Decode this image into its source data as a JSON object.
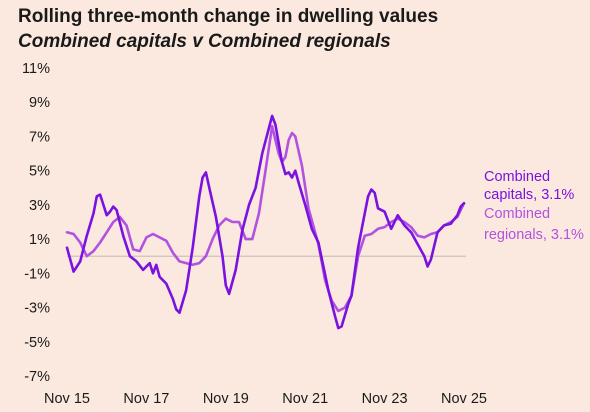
{
  "title": "Rolling three-month change in dwelling values",
  "subtitle": "Combined capitals v Combined regionals",
  "chart_data": {
    "type": "line",
    "title": "Rolling three-month change in dwelling values",
    "subtitle": "Combined capitals v Combined regionals",
    "xlabel": "",
    "ylabel": "",
    "ylim": [
      -7,
      11
    ],
    "yticks": [
      11,
      9,
      7,
      5,
      3,
      1,
      -1,
      -3,
      -5,
      -7
    ],
    "ytick_labels": [
      "11%",
      "9%",
      "7%",
      "5%",
      "3%",
      "1%",
      "-1%",
      "-3%",
      "-5%",
      "-7%"
    ],
    "xlim": [
      "2015-11",
      "2025-11"
    ],
    "xticks": [
      "2015-11",
      "2017-11",
      "2019-11",
      "2021-11",
      "2023-11",
      "2025-11"
    ],
    "xtick_labels": [
      "Nov 15",
      "Nov 17",
      "Nov 19",
      "Nov 21",
      "Nov 23",
      "Nov 25"
    ],
    "zero_line": true,
    "grid": false,
    "legend": "labels at right end of lines",
    "series": [
      {
        "name": "Combined capitals, 3.1%",
        "label_lines": [
          "Combined",
          "capitals, 3.1%"
        ],
        "color": "#7a12e0",
        "points": [
          [
            "2015-11",
            0.5
          ],
          [
            "2016-01",
            -0.9
          ],
          [
            "2016-03",
            -0.3
          ],
          [
            "2016-05",
            1.2
          ],
          [
            "2016-07",
            2.5
          ],
          [
            "2016-08",
            3.5
          ],
          [
            "2016-09",
            3.6
          ],
          [
            "2016-10",
            3.0
          ],
          [
            "2016-11",
            2.4
          ],
          [
            "2016-12",
            2.6
          ],
          [
            "2017-01",
            2.9
          ],
          [
            "2017-02",
            2.7
          ],
          [
            "2017-04",
            1.2
          ],
          [
            "2017-06",
            0.0
          ],
          [
            "2017-08",
            -0.3
          ],
          [
            "2017-10",
            -0.8
          ],
          [
            "2017-11",
            -0.6
          ],
          [
            "2017-12",
            -0.4
          ],
          [
            "2018-01",
            -1.0
          ],
          [
            "2018-02",
            -0.5
          ],
          [
            "2018-03",
            -1.2
          ],
          [
            "2018-05",
            -1.6
          ],
          [
            "2018-07",
            -2.5
          ],
          [
            "2018-08",
            -3.1
          ],
          [
            "2018-09",
            -3.3
          ],
          [
            "2018-11",
            -2.0
          ],
          [
            "2019-01",
            0.5
          ],
          [
            "2019-03",
            3.5
          ],
          [
            "2019-04",
            4.6
          ],
          [
            "2019-05",
            4.9
          ],
          [
            "2019-06",
            4.0
          ],
          [
            "2019-08",
            2.3
          ],
          [
            "2019-10",
            0.0
          ],
          [
            "2019-11",
            -1.7
          ],
          [
            "2019-12",
            -2.2
          ],
          [
            "2020-02",
            -0.8
          ],
          [
            "2020-04",
            1.5
          ],
          [
            "2020-06",
            3.0
          ],
          [
            "2020-08",
            4.0
          ],
          [
            "2020-10",
            6.0
          ],
          [
            "2021-01",
            8.2
          ],
          [
            "2021-02",
            7.7
          ],
          [
            "2021-04",
            5.5
          ],
          [
            "2021-05",
            4.8
          ],
          [
            "2021-06",
            4.9
          ],
          [
            "2021-07",
            4.6
          ],
          [
            "2021-08",
            5.0
          ],
          [
            "2021-09",
            4.3
          ],
          [
            "2021-11",
            3.0
          ],
          [
            "2022-01",
            1.6
          ],
          [
            "2022-03",
            0.8
          ],
          [
            "2022-06",
            -2.0
          ],
          [
            "2022-08",
            -3.5
          ],
          [
            "2022-09",
            -4.2
          ],
          [
            "2022-10",
            -4.1
          ],
          [
            "2022-12",
            -2.8
          ],
          [
            "2023-01",
            -2.3
          ],
          [
            "2023-03",
            0.5
          ],
          [
            "2023-04",
            1.5
          ],
          [
            "2023-06",
            3.5
          ],
          [
            "2023-07",
            3.9
          ],
          [
            "2023-08",
            3.7
          ],
          [
            "2023-09",
            2.8
          ],
          [
            "2023-11",
            2.6
          ],
          [
            "2024-01",
            1.6
          ],
          [
            "2024-03",
            2.4
          ],
          [
            "2024-05",
            1.8
          ],
          [
            "2024-07",
            1.4
          ],
          [
            "2024-09",
            0.7
          ],
          [
            "2024-11",
            0.0
          ],
          [
            "2024-12",
            -0.6
          ],
          [
            "2025-01",
            -0.2
          ],
          [
            "2025-03",
            1.4
          ],
          [
            "2025-05",
            1.8
          ],
          [
            "2025-07",
            1.9
          ],
          [
            "2025-09",
            2.4
          ],
          [
            "2025-10",
            2.9
          ],
          [
            "2025-11",
            3.1
          ]
        ]
      },
      {
        "name": "Combined regionals, 3.1%",
        "label_lines": [
          "Combined",
          "regionals, 3.1%"
        ],
        "color": "#b152e0",
        "points": [
          [
            "2015-11",
            1.4
          ],
          [
            "2016-01",
            1.3
          ],
          [
            "2016-03",
            0.8
          ],
          [
            "2016-05",
            0.0
          ],
          [
            "2016-07",
            0.3
          ],
          [
            "2016-09",
            0.8
          ],
          [
            "2016-11",
            1.4
          ],
          [
            "2017-01",
            2.0
          ],
          [
            "2017-03",
            2.3
          ],
          [
            "2017-05",
            1.8
          ],
          [
            "2017-07",
            0.4
          ],
          [
            "2017-09",
            0.3
          ],
          [
            "2017-11",
            1.1
          ],
          [
            "2018-01",
            1.3
          ],
          [
            "2018-03",
            1.1
          ],
          [
            "2018-05",
            0.9
          ],
          [
            "2018-07",
            0.2
          ],
          [
            "2018-09",
            -0.3
          ],
          [
            "2018-11",
            -0.4
          ],
          [
            "2019-01",
            -0.5
          ],
          [
            "2019-03",
            -0.4
          ],
          [
            "2019-05",
            0.0
          ],
          [
            "2019-07",
            1.0
          ],
          [
            "2019-09",
            1.8
          ],
          [
            "2019-11",
            2.2
          ],
          [
            "2020-01",
            2.0
          ],
          [
            "2020-03",
            2.0
          ],
          [
            "2020-05",
            1.0
          ],
          [
            "2020-07",
            1.0
          ],
          [
            "2020-09",
            2.5
          ],
          [
            "2020-11",
            5.0
          ],
          [
            "2021-01",
            7.6
          ],
          [
            "2021-03",
            6.0
          ],
          [
            "2021-04",
            5.5
          ],
          [
            "2021-05",
            5.8
          ],
          [
            "2021-06",
            6.8
          ],
          [
            "2021-07",
            7.2
          ],
          [
            "2021-08",
            7.0
          ],
          [
            "2021-10",
            5.3
          ],
          [
            "2021-12",
            2.8
          ],
          [
            "2022-03",
            0.7
          ],
          [
            "2022-05",
            -1.4
          ],
          [
            "2022-07",
            -2.6
          ],
          [
            "2022-09",
            -3.2
          ],
          [
            "2022-11",
            -3.0
          ],
          [
            "2023-01",
            -2.3
          ],
          [
            "2023-03",
            0.0
          ],
          [
            "2023-05",
            1.2
          ],
          [
            "2023-07",
            1.3
          ],
          [
            "2023-09",
            1.6
          ],
          [
            "2023-11",
            1.7
          ],
          [
            "2024-01",
            2.0
          ],
          [
            "2024-03",
            2.2
          ],
          [
            "2024-05",
            2.0
          ],
          [
            "2024-07",
            1.7
          ],
          [
            "2024-09",
            1.2
          ],
          [
            "2024-11",
            1.1
          ],
          [
            "2025-01",
            1.3
          ],
          [
            "2025-03",
            1.4
          ],
          [
            "2025-05",
            1.8
          ],
          [
            "2025-07",
            2.0
          ],
          [
            "2025-09",
            2.3
          ],
          [
            "2025-11",
            3.1
          ]
        ]
      }
    ]
  }
}
